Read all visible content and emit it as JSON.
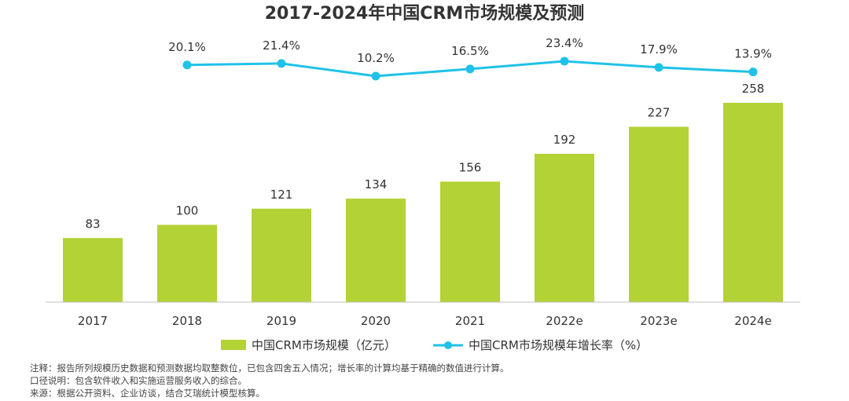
{
  "chart_data": {
    "type": "bar",
    "title": "2017-2024年中国CRM市场规模及预测",
    "categories": [
      "2017",
      "2018",
      "2019",
      "2020",
      "2021",
      "2022e",
      "2023e",
      "2024e"
    ],
    "series": [
      {
        "name": "中国CRM市场规模（亿元）",
        "type": "bar",
        "values": [
          83,
          100,
          121,
          134,
          156,
          192,
          227,
          258
        ],
        "color": "#b2d235"
      },
      {
        "name": "中国CRM市场规模年增长率（%）",
        "type": "line",
        "values": [
          20.1,
          21.4,
          10.2,
          16.5,
          23.4,
          17.9,
          13.9
        ],
        "labels": [
          "20.1%",
          "21.4%",
          "10.2%",
          "16.5%",
          "23.4%",
          "17.9%",
          "13.9%"
        ],
        "x": [
          "2018",
          "2019",
          "2020",
          "2021",
          "2022e",
          "2023e",
          "2024e"
        ],
        "color": "#1fc2e8"
      }
    ],
    "legend": "bottom",
    "grid": false
  },
  "notes": [
    "注释：报告所列规模历史数据和预测数据均取整数位，已包含四舍五入情况；增长率的计算均基于精确的数值进行计算。",
    "口径说明：包含软件收入和实施运营服务收入的综合。",
    "来源：根据公开资料、企业访谈，结合艾瑞统计模型核算。"
  ]
}
